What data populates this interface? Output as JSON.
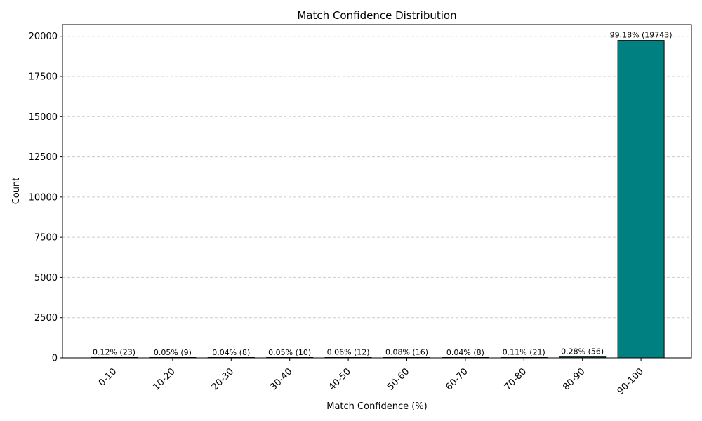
{
  "chart_data": {
    "type": "bar",
    "title": "Match Confidence Distribution",
    "xlabel": "Match Confidence (%)",
    "ylabel": "Count",
    "categories": [
      "0-10",
      "10-20",
      "20-30",
      "30-40",
      "40-50",
      "50-60",
      "60-70",
      "70-80",
      "80-90",
      "90-100"
    ],
    "values": [
      23,
      9,
      8,
      10,
      12,
      16,
      8,
      21,
      56,
      19743
    ],
    "data_labels": [
      "0.12% (23)",
      "0.05% (9)",
      "0.04% (8)",
      "0.05% (10)",
      "0.06% (12)",
      "0.08% (16)",
      "0.04% (8)",
      "0.11% (21)",
      "0.28% (56)",
      "99.18% (19743)"
    ],
    "yticks": [
      0,
      2500,
      5000,
      7500,
      10000,
      12500,
      15000,
      17500,
      20000
    ],
    "ylim": [
      0,
      20730
    ],
    "grid": "y-dashed",
    "bar_color": "#008080",
    "bar_edge_color": "#000000",
    "grid_color": "#cccccc"
  }
}
